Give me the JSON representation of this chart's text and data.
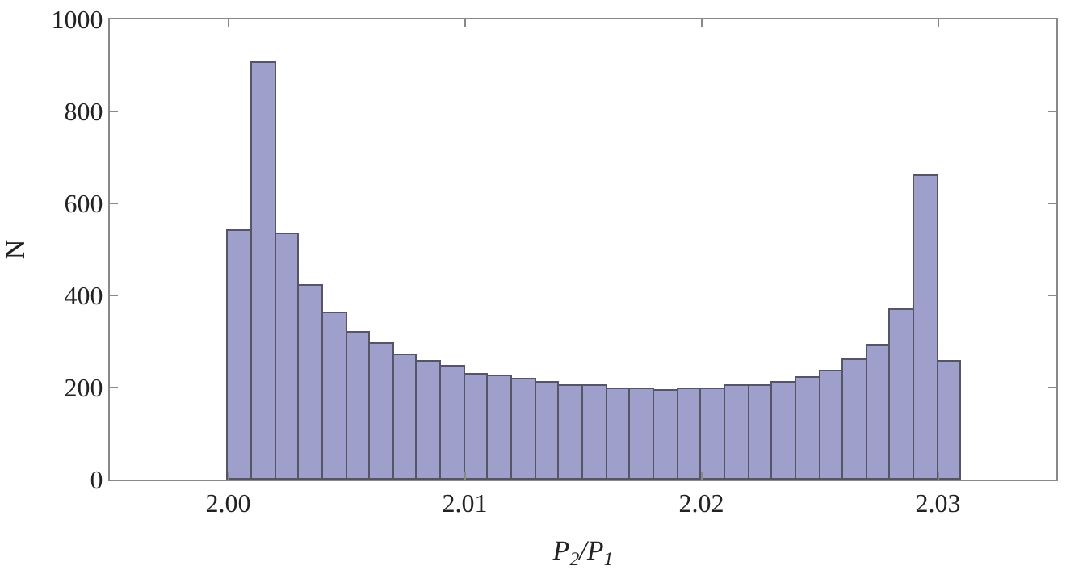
{
  "chart_data": {
    "type": "histogram",
    "xlabel": "P$_{2}$/P$_{1}$",
    "ylabel": "N",
    "color": "#9f9fcc",
    "bins": [
      2.0,
      2.001,
      2.002,
      2.003,
      2.004,
      2.005,
      2.006,
      2.007,
      2.008,
      2.009,
      2.01,
      2.011,
      2.012,
      2.013,
      2.014,
      2.015,
      2.016,
      2.017,
      2.018,
      2.019,
      2.02,
      2.021,
      2.022,
      2.023,
      2.024,
      2.025,
      2.026,
      2.027,
      2.028,
      2.029,
      2.03,
      2.031
    ],
    "values": [
      540,
      907,
      532,
      421,
      360,
      321,
      295,
      271,
      257,
      244,
      229,
      223,
      216,
      212,
      204,
      202,
      197,
      197,
      193,
      197,
      195,
      202,
      205,
      212,
      221,
      235,
      258,
      292,
      368,
      661,
      255
    ],
    "xlim": [
      1.995,
      2.035
    ],
    "xticks": [
      {
        "value": 2.0,
        "label": "2.00"
      },
      2.01,
      2.02,
      2.03
    ],
    "ylim": [
      0,
      1000
    ],
    "yticks": [
      0,
      200,
      400,
      600,
      800,
      1000
    ]
  }
}
